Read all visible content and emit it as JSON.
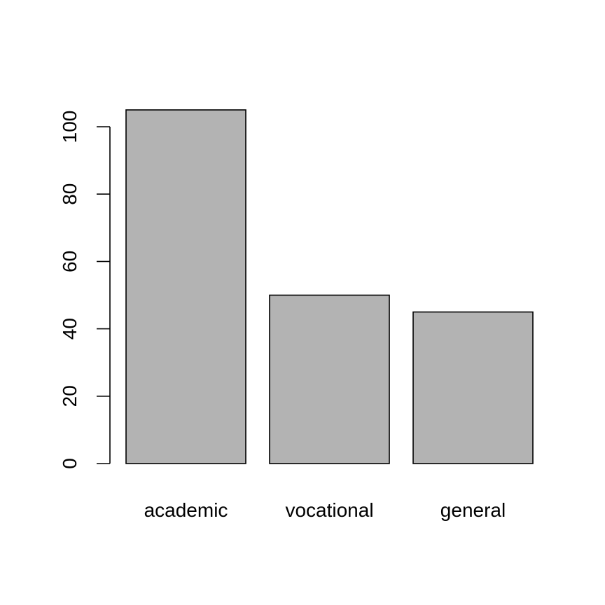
{
  "chart_data": {
    "type": "bar",
    "title": "",
    "xlabel": "",
    "ylabel": "",
    "categories": [
      "academic",
      "vocational",
      "general"
    ],
    "values": [
      105,
      50,
      45
    ],
    "ylim": [
      0,
      105
    ],
    "yticks": [
      0,
      20,
      40,
      60,
      80,
      100
    ],
    "ytick_labels": [
      "0",
      "20",
      "40",
      "60",
      "80",
      "100"
    ],
    "grid": false,
    "colors": {
      "bar_fill": "#b3b3b3",
      "bar_stroke": "#000000",
      "axis": "#000000",
      "background": "#ffffff"
    }
  }
}
